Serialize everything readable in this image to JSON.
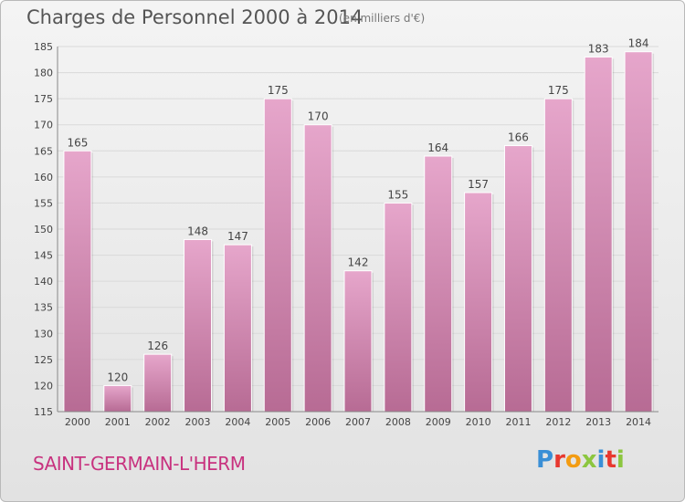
{
  "header": {
    "title": "Charges de Personnel 2000 à 2014",
    "subtitle": "(en milliers d'€)"
  },
  "footer": {
    "commune": "SAINT-GERMAIN-L'HERM",
    "brand": "Proxiti",
    "brand_colors": [
      "#3a8fd6",
      "#e8382f",
      "#f39c12",
      "#8cc63f",
      "#3a8fd6",
      "#e8382f",
      "#8cc63f"
    ]
  },
  "colors": {
    "bar_top": "#e6a6cb",
    "bar_bottom": "#b76b94",
    "grid": "#d9d9d9",
    "axis_text": "#444444",
    "commune": "#c8327f"
  },
  "chart_data": {
    "type": "bar",
    "title": "Charges de Personnel 2000 à 2014",
    "subtitle": "(en milliers d'€)",
    "categories": [
      "2000",
      "2001",
      "2002",
      "2003",
      "2004",
      "2005",
      "2006",
      "2007",
      "2008",
      "2009",
      "2010",
      "2011",
      "2012",
      "2013",
      "2014"
    ],
    "values": [
      165,
      120,
      126,
      148,
      147,
      175,
      170,
      142,
      155,
      164,
      157,
      166,
      175,
      183,
      184
    ],
    "ylim": [
      115,
      185
    ],
    "yticks": [
      115,
      120,
      125,
      130,
      135,
      140,
      145,
      150,
      155,
      160,
      165,
      170,
      175,
      180,
      185
    ],
    "grid": true,
    "data_labels": true
  }
}
